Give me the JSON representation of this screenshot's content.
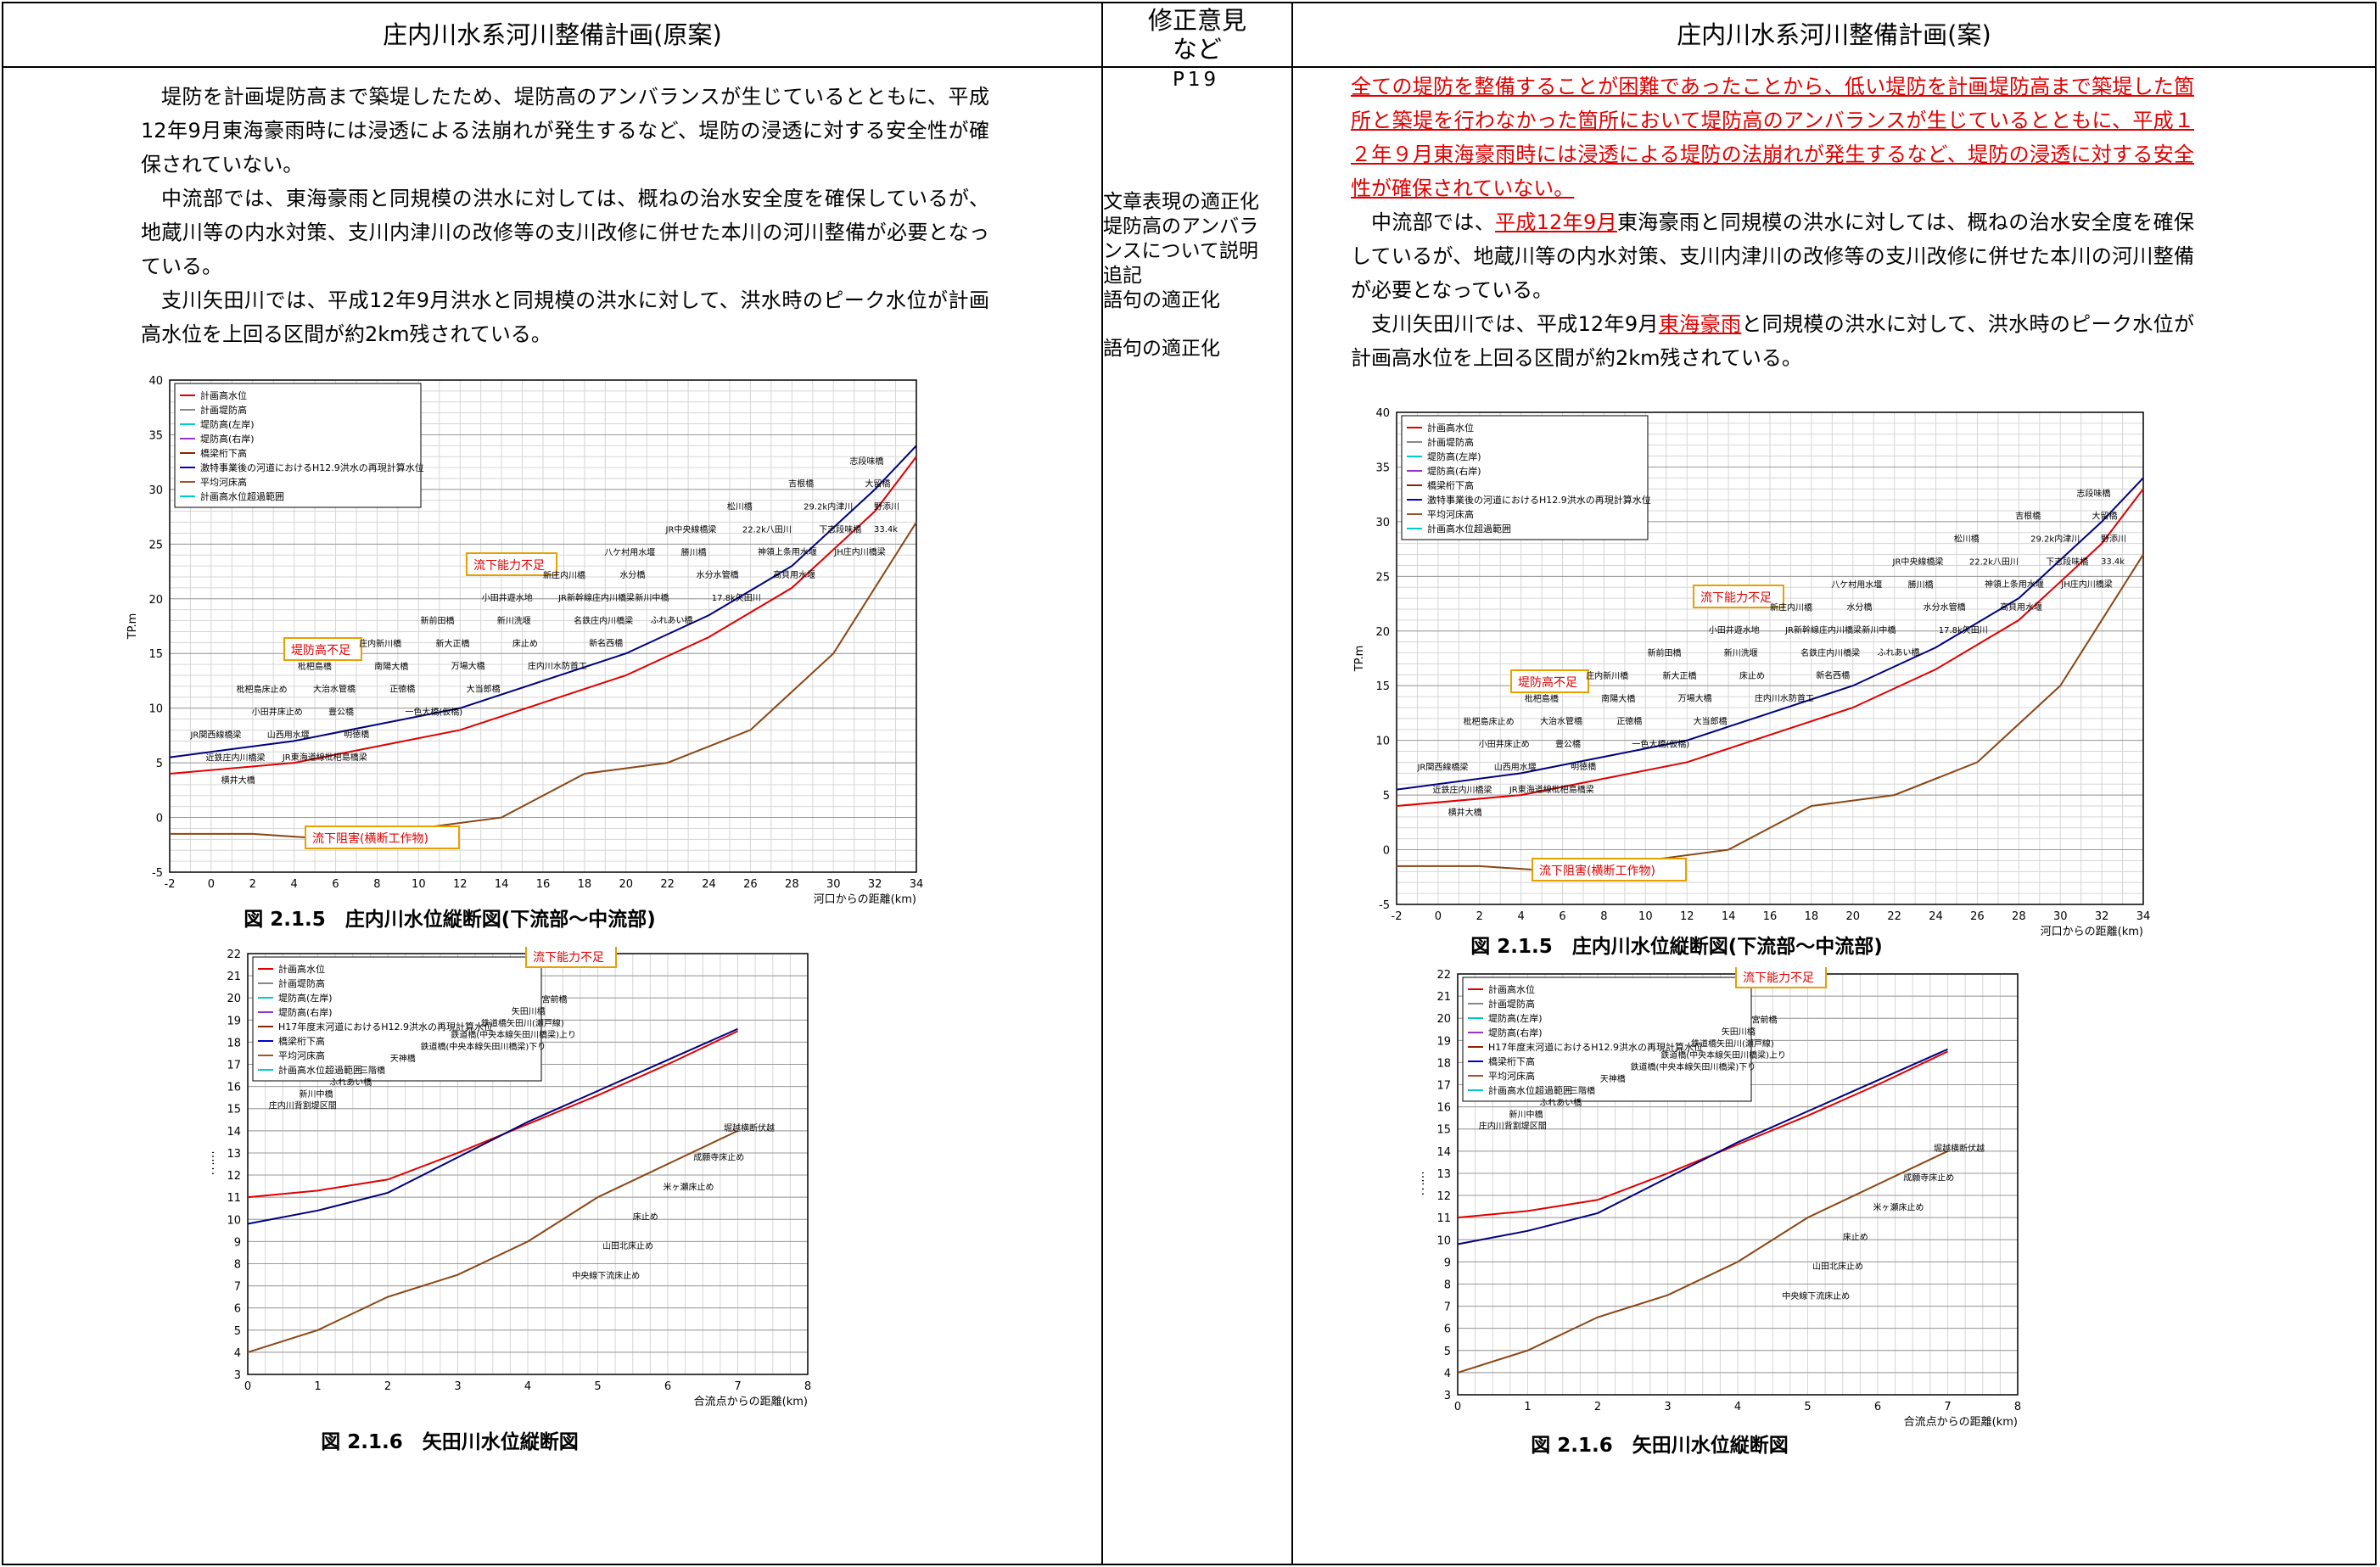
{
  "header": {
    "left_title": "庄内川水系河川整備計画(原案)",
    "mid_title_1": "修正意見",
    "mid_title_2": "など",
    "right_title": "庄内川水系河川整備計画(案)"
  },
  "mid": {
    "page_ref": "P19",
    "notes": [
      "文章表現の適正化",
      "堤防高のアンバラ",
      "ンスについて説明",
      "追記",
      "語句の適正化",
      "語句の適正化"
    ]
  },
  "left": {
    "p1": "堤防を計画堤防高まで築堤したため、堤防高のアンバランスが生じているとともに、平成12年9月東海豪雨時には浸透による法崩れが発生するなど、堤防の浸透に対する安全性が確保されていない。",
    "p2": "中流部では、東海豪雨と同規模の洪水に対しては、概ねの治水安全度を確保しているが、地蔵川等の内水対策、支川内津川の改修等の支川改修に併せた本川の河川整備が必要となっている。",
    "p3": "支川矢田川では、平成12年9月洪水と同規模の洪水に対して、洪水時のピーク水位が計画高水位を上回る区間が約2km残されている。"
  },
  "right": {
    "p1_red": "全ての堤防を整備することが困難であったことから、低い堤防を計画堤防高まで築堤した箇所と築堤を行わなかった箇所において堤防高のアンバランスが生じているとともに、平成１２年９月東海豪雨時には浸透による堤防の法崩れが発生するなど、堤防の浸透に対する安全性が確保されていない。",
    "p2_a": "中流部では、",
    "p2_red": "平成12年9月",
    "p2_b": "東海豪雨と同規模の洪水に対しては、概ねの治水安全度を確保しているが、地蔵川等の内水対策、支川内津川の改修等の支川改修に併せた本川の河川整備が必要となっている。",
    "p3_a": "支川矢田川では、平成12年9月",
    "p3_red": "東海豪雨",
    "p3_b": "と同規模の洪水に対して、洪水時のピーク水位が計画高水位を上回る区間が約2km残されている。"
  },
  "figure1": {
    "caption": "図 2.1.5　庄内川水位縦断図(下流部～中流部)",
    "y_label": "TP.m",
    "x_label": "河口からの距離(km)",
    "legend": [
      "計画高水位",
      "計画堤防高",
      "堤防高(左岸)",
      "堤防高(右岸)",
      "橋梁桁下高",
      "激特事業後の河道におけるH12.9洪水の再現計算水位",
      "平均河床高",
      "計画高水位超過範囲"
    ],
    "callouts": [
      "流下能力不足",
      "堤防高不足",
      "流下阻害(横断工作物)"
    ],
    "labels": [
      "33.4k",
      "野添川",
      "大留橋",
      "志段味橋",
      "JH庄内川橋梁",
      "下志段味橋",
      "29.2k内津川",
      "吉根橋",
      "高貝用水堰",
      "神領上条用水堰",
      "22.2k八田川",
      "松川橋",
      "17.8k矢田川",
      "水分水管橋",
      "勝川橋",
      "JR中央線橋梁",
      "ふれあい橋",
      "新川中橋",
      "水分橋",
      "八ケ村用水堰",
      "新名西橋",
      "名鉄庄内川橋梁",
      "JR新幹線庄内川橋梁",
      "新庄内川橋",
      "庄内川水防首工",
      "床止め",
      "新川洗堰",
      "小田井遊水地",
      "大当郎橋",
      "万場大橋",
      "新大正橋",
      "新前田橋",
      "一色大橋(仮橋)",
      "正徳橋",
      "南陽大橋",
      "庄内新川橋",
      "明徳橋",
      "豊公橋",
      "大治水管橋",
      "枇杷島橋",
      "JR東海道線枇杷島橋梁",
      "山西用水堰",
      "小田井床止め",
      "枇杷島床止め",
      "横井大橋",
      "近鉄庄内川橋梁",
      "JR関西線橋梁"
    ],
    "chart_data": {
      "type": "line",
      "xlabel": "河口からの距離(km)",
      "ylabel": "TP.m",
      "xlim": [
        -2,
        34
      ],
      "ylim": [
        -5,
        40
      ],
      "series": [
        {
          "name": "計画高水位",
          "x": [
            -2,
            4,
            8,
            12,
            16,
            20,
            24,
            28,
            32,
            34
          ],
          "y": [
            4,
            5,
            6.5,
            8,
            10.5,
            13,
            16.5,
            21,
            28,
            33
          ]
        },
        {
          "name": "計画堤防高",
          "x": [
            -2,
            4,
            8,
            12,
            16,
            20,
            24,
            28,
            32,
            34
          ],
          "y": [
            5.5,
            7,
            8.5,
            10,
            12.5,
            15,
            18.5,
            23,
            30,
            34
          ]
        },
        {
          "name": "平均河床高",
          "x": [
            -2,
            2,
            6,
            10,
            14,
            16,
            18,
            22,
            26,
            30,
            34
          ],
          "y": [
            -1.5,
            -1.5,
            -2,
            -1,
            0,
            2,
            4,
            5,
            8,
            15,
            27
          ]
        }
      ]
    }
  },
  "figure2": {
    "caption": "図 2.1.6　矢田川水位縦断図",
    "y_label": "TP.m",
    "x_label": "合流点からの距離(km)",
    "legend": [
      "計画高水位",
      "計画堤防高",
      "堤防高(左岸)",
      "堤防高(右岸)",
      "H17年度末河道におけるH12.9洪水の再現計算水位",
      "橋梁桁下高",
      "平均河床高",
      "計画高水位超過範囲"
    ],
    "callouts": [
      "流下能力不足"
    ],
    "labels": [
      "庄内川背割堤区間",
      "新川中橋",
      "ふれあい橋",
      "三階橋",
      "天神橋",
      "鉄道橋(中央本線矢田川橋梁)下り",
      "鉄道橋(中央本線矢田川橋梁)上り",
      "鉄道橋矢田川(瀬戸線)",
      "矢田川橋",
      "宮前橋",
      "中央線下流床止め",
      "山田北床止め",
      "床止め",
      "米ヶ瀬床止め",
      "成願寺床止め",
      "堀越横断伏越"
    ],
    "chart_data": {
      "type": "line",
      "xlabel": "合流点からの距離(km)",
      "ylabel": "TP.m",
      "xlim": [
        0,
        8
      ],
      "ylim": [
        3,
        22
      ],
      "series": [
        {
          "name": "計画高水位",
          "x": [
            0,
            1,
            2,
            3,
            4,
            5,
            6,
            7
          ],
          "y": [
            11,
            11.3,
            11.8,
            13,
            14.3,
            15.6,
            17,
            18.5
          ]
        },
        {
          "name": "再現計算水位",
          "x": [
            0,
            1,
            2,
            3,
            4,
            5,
            6,
            7
          ],
          "y": [
            9.8,
            10.4,
            11.2,
            12.8,
            14.4,
            15.8,
            17.2,
            18.6
          ]
        },
        {
          "name": "平均河床高",
          "x": [
            0,
            1,
            2,
            3,
            4,
            5,
            6,
            7
          ],
          "y": [
            4,
            5,
            6.5,
            7.5,
            9,
            11,
            12.5,
            14
          ]
        }
      ]
    }
  }
}
